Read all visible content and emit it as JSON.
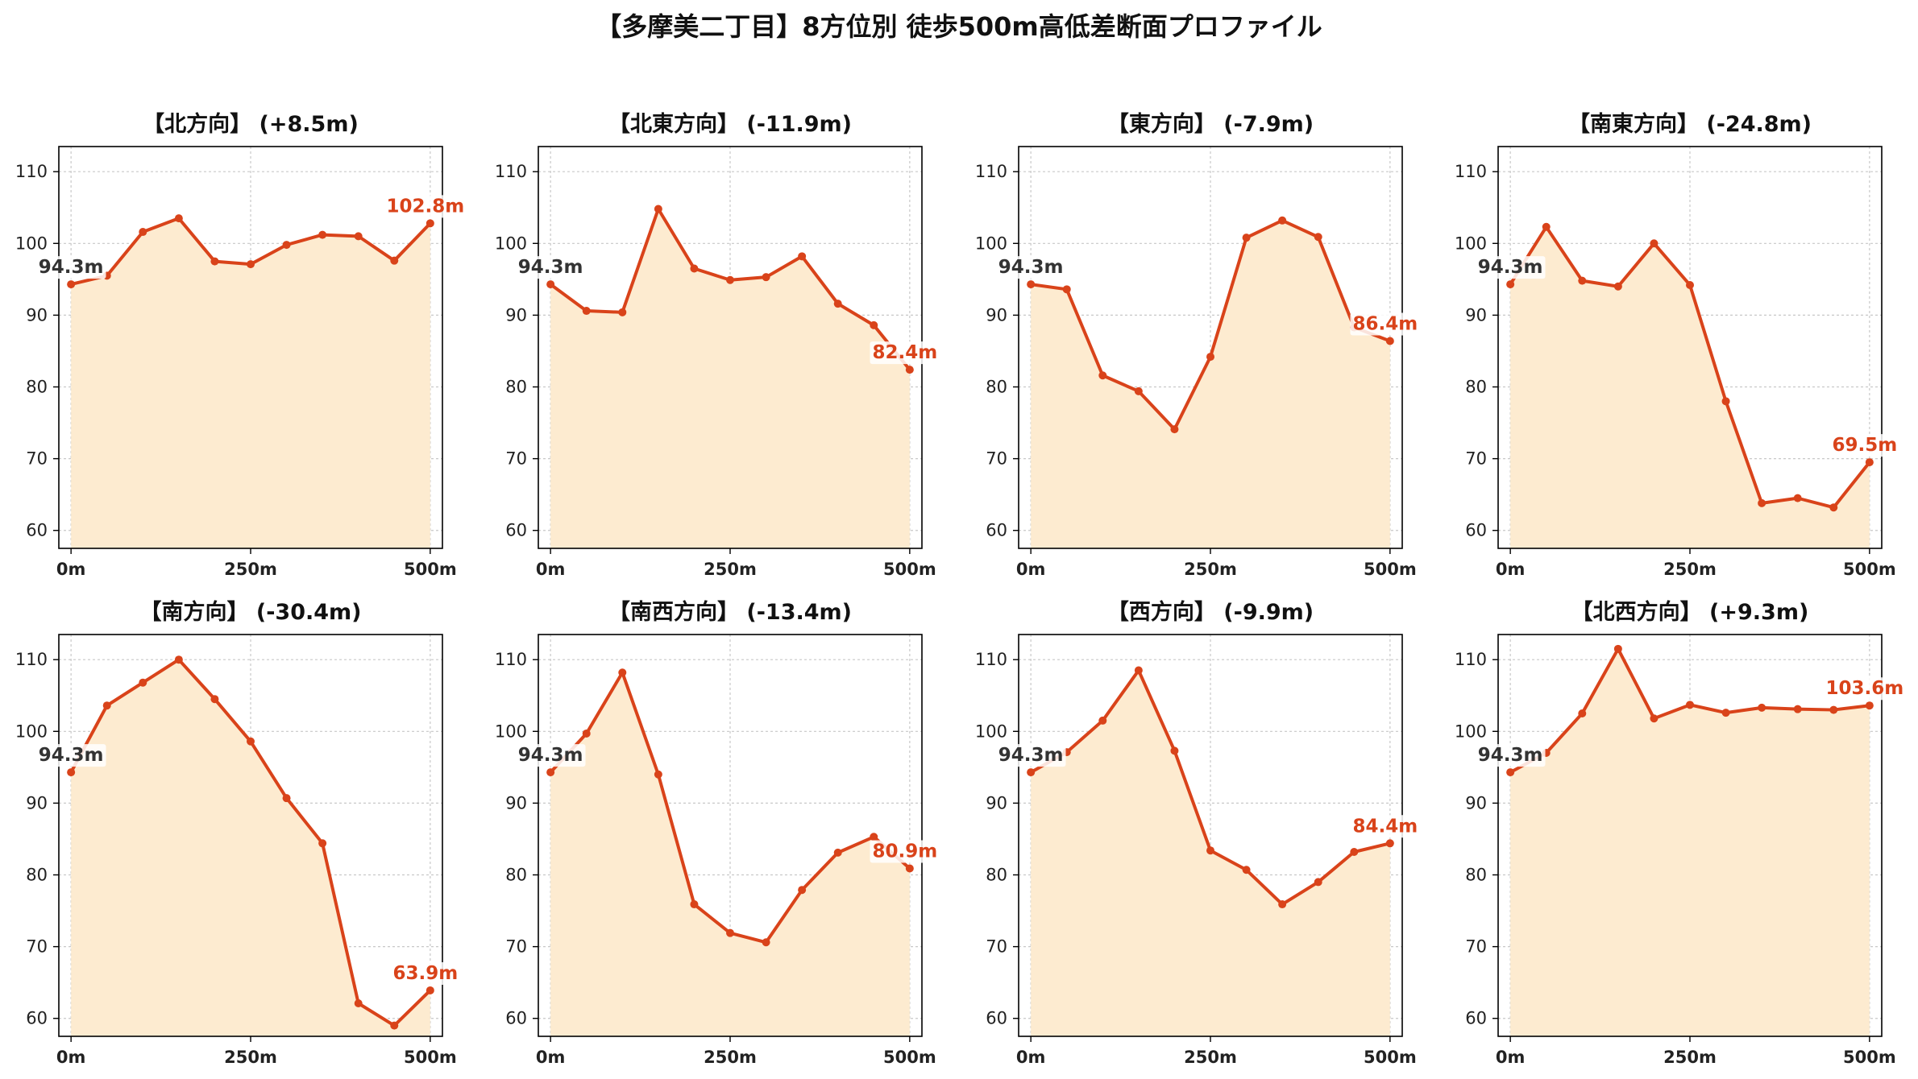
{
  "title": "【多摩美二丁目】8方位別 徒歩500m高低差断面プロファイル",
  "colors": {
    "line": "#d9431a",
    "fill": "#fdebd0",
    "start_label": "#333333",
    "end_label": "#d9431a",
    "grid": "#c8c8c8"
  },
  "chart_data": [
    {
      "type": "area",
      "title": "【北方向】 (+8.5m)",
      "x": [
        0,
        50,
        100,
        150,
        200,
        250,
        300,
        350,
        400,
        450,
        500
      ],
      "values": [
        94.3,
        95.5,
        101.6,
        103.5,
        97.5,
        97.1,
        99.8,
        101.2,
        101.0,
        97.6,
        102.8
      ],
      "xticks": [
        "0m",
        "250m",
        "500m"
      ],
      "yticks": [
        60,
        70,
        80,
        90,
        100,
        110
      ],
      "xlim": [
        -17,
        517
      ],
      "ylim": [
        57.5,
        113.5
      ],
      "start_label": "94.3m",
      "end_label": "102.8m",
      "grid": true
    },
    {
      "type": "area",
      "title": "【北東方向】 (-11.9m)",
      "x": [
        0,
        50,
        100,
        150,
        200,
        250,
        300,
        350,
        400,
        450,
        500
      ],
      "values": [
        94.3,
        90.6,
        90.4,
        104.8,
        96.5,
        94.9,
        95.3,
        98.2,
        91.6,
        88.6,
        82.4
      ],
      "xticks": [
        "0m",
        "250m",
        "500m"
      ],
      "yticks": [
        60,
        70,
        80,
        90,
        100,
        110
      ],
      "xlim": [
        -17,
        517
      ],
      "ylim": [
        57.5,
        113.5
      ],
      "start_label": "94.3m",
      "end_label": "82.4m",
      "grid": true
    },
    {
      "type": "area",
      "title": "【東方向】 (-7.9m)",
      "x": [
        0,
        50,
        100,
        150,
        200,
        250,
        300,
        350,
        400,
        450,
        500
      ],
      "values": [
        94.3,
        93.6,
        81.6,
        79.4,
        74.1,
        84.2,
        100.8,
        103.2,
        100.9,
        88.3,
        86.4
      ],
      "xticks": [
        "0m",
        "250m",
        "500m"
      ],
      "yticks": [
        60,
        70,
        80,
        90,
        100,
        110
      ],
      "xlim": [
        -17,
        517
      ],
      "ylim": [
        57.5,
        113.5
      ],
      "start_label": "94.3m",
      "end_label": "86.4m",
      "grid": true
    },
    {
      "type": "area",
      "title": "【南東方向】 (-24.8m)",
      "x": [
        0,
        50,
        100,
        150,
        200,
        250,
        300,
        350,
        400,
        450,
        500
      ],
      "values": [
        94.3,
        102.3,
        94.8,
        94.0,
        100.0,
        94.2,
        78.0,
        63.8,
        64.5,
        63.2,
        69.5
      ],
      "xticks": [
        "0m",
        "250m",
        "500m"
      ],
      "yticks": [
        60,
        70,
        80,
        90,
        100,
        110
      ],
      "xlim": [
        -17,
        517
      ],
      "ylim": [
        57.5,
        113.5
      ],
      "start_label": "94.3m",
      "end_label": "69.5m",
      "grid": true
    },
    {
      "type": "area",
      "title": "【南方向】 (-30.4m)",
      "x": [
        0,
        50,
        100,
        150,
        200,
        250,
        300,
        350,
        400,
        450,
        500
      ],
      "values": [
        94.3,
        103.6,
        106.8,
        110.0,
        104.5,
        98.6,
        90.7,
        84.4,
        62.1,
        59.0,
        63.9
      ],
      "xticks": [
        "0m",
        "250m",
        "500m"
      ],
      "yticks": [
        60,
        70,
        80,
        90,
        100,
        110
      ],
      "xlim": [
        -17,
        517
      ],
      "ylim": [
        57.5,
        113.5
      ],
      "start_label": "94.3m",
      "end_label": "63.9m",
      "grid": true
    },
    {
      "type": "area",
      "title": "【南西方向】 (-13.4m)",
      "x": [
        0,
        50,
        100,
        150,
        200,
        250,
        300,
        350,
        400,
        450,
        500
      ],
      "values": [
        94.3,
        99.7,
        108.2,
        94.0,
        75.9,
        71.9,
        70.6,
        77.9,
        83.1,
        85.3,
        80.9
      ],
      "xticks": [
        "0m",
        "250m",
        "500m"
      ],
      "yticks": [
        60,
        70,
        80,
        90,
        100,
        110
      ],
      "xlim": [
        -17,
        517
      ],
      "ylim": [
        57.5,
        113.5
      ],
      "start_label": "94.3m",
      "end_label": "80.9m",
      "grid": true
    },
    {
      "type": "area",
      "title": "【西方向】 (-9.9m)",
      "x": [
        0,
        50,
        100,
        150,
        200,
        250,
        300,
        350,
        400,
        450,
        500
      ],
      "values": [
        94.3,
        97.1,
        101.5,
        108.5,
        97.3,
        83.4,
        80.7,
        75.9,
        79.0,
        83.2,
        84.4
      ],
      "xticks": [
        "0m",
        "250m",
        "500m"
      ],
      "yticks": [
        60,
        70,
        80,
        90,
        100,
        110
      ],
      "xlim": [
        -17,
        517
      ],
      "ylim": [
        57.5,
        113.5
      ],
      "start_label": "94.3m",
      "end_label": "84.4m",
      "grid": true
    },
    {
      "type": "area",
      "title": "【北西方向】 (+9.3m)",
      "x": [
        0,
        50,
        100,
        150,
        200,
        250,
        300,
        350,
        400,
        450,
        500
      ],
      "values": [
        94.3,
        97.0,
        102.5,
        111.5,
        101.8,
        103.7,
        102.6,
        103.3,
        103.1,
        103.0,
        103.6
      ],
      "xticks": [
        "0m",
        "250m",
        "500m"
      ],
      "yticks": [
        60,
        70,
        80,
        90,
        100,
        110
      ],
      "xlim": [
        -17,
        517
      ],
      "ylim": [
        57.5,
        113.5
      ],
      "start_label": "94.3m",
      "end_label": "103.6m",
      "grid": true
    }
  ]
}
